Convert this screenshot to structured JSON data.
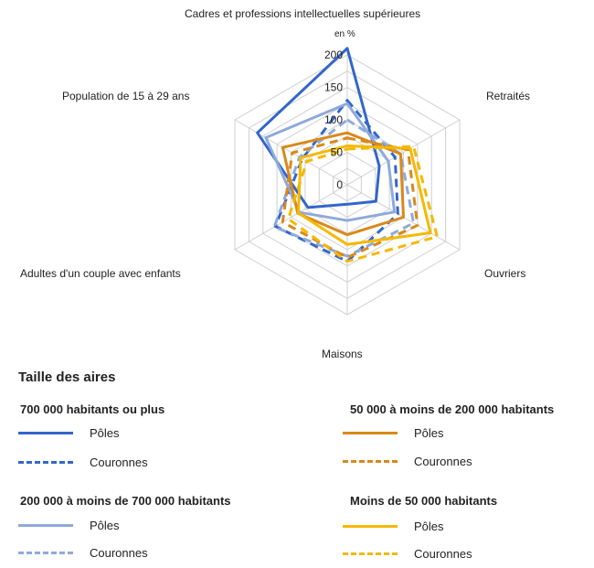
{
  "chart_data": {
    "type": "radar",
    "unit_label": "en %",
    "axes": [
      "Cadres et professions intellectuelles supérieures",
      "Retraités",
      "Ouvriers",
      "Maisons",
      "Adultes d'un couple avec enfants",
      "Population de 15 à 29 ans"
    ],
    "rlim": [
      0,
      200
    ],
    "ticks": [
      0,
      50,
      100,
      150,
      200
    ],
    "series": [
      {
        "name": "700 000 habitants ou plus — Pôles",
        "group": "700 000 habitants ou plus",
        "label": "Pôles",
        "color": "#3366cc",
        "dash": false,
        "values": [
          210,
          57,
          51,
          30,
          70,
          160
        ]
      },
      {
        "name": "700 000 habitants ou plus — Couronnes",
        "group": "700 000 habitants ou plus",
        "label": "Couronnes",
        "color": "#3366cc",
        "dash": true,
        "values": [
          130,
          85,
          90,
          118,
          128,
          80
        ]
      },
      {
        "name": "200 000 à moins de 700 000 habitants — Pôles",
        "group": "200 000 à moins de 700 000 habitants",
        "label": "Pôles",
        "color": "#8eaadb",
        "dash": false,
        "values": [
          125,
          73,
          84,
          55,
          85,
          145
        ]
      },
      {
        "name": "200 000 à moins de 700 000 habitants — Couronnes",
        "group": "200 000 à moins de 700 000 habitants",
        "label": "Couronnes",
        "color": "#8eaadb",
        "dash": true,
        "values": [
          100,
          95,
          118,
          110,
          130,
          85
        ]
      },
      {
        "name": "50 000 à moins de 200 000 habitants — Pôles",
        "group": "50 000 à moins de 200 000 habitants",
        "label": "Pôles",
        "color": "#d9891a",
        "dash": false,
        "values": [
          80,
          95,
          100,
          77,
          88,
          115
        ]
      },
      {
        "name": "50 000 à moins de 200 000 habitants — Couronnes",
        "group": "50 000 à moins de 200 000 habitants",
        "label": "Couronnes",
        "color": "#d9891a",
        "dash": true,
        "values": [
          72,
          108,
          125,
          112,
          115,
          98
        ]
      },
      {
        "name": "Moins de 50 000 habitants — Pôles",
        "group": "Moins de 50 000 habitants",
        "label": "Pôles",
        "color": "#f5b800",
        "dash": false,
        "values": [
          60,
          112,
          148,
          92,
          87,
          83
        ]
      },
      {
        "name": "Moins de 50 000 habitants — Couronnes",
        "group": "Moins de 50 000 habitants",
        "label": "Couronnes",
        "color": "#f5b800",
        "dash": true,
        "values": [
          55,
          118,
          160,
          118,
          105,
          72
        ]
      }
    ]
  },
  "legend": {
    "title": "Taille des aires",
    "groups": [
      {
        "title": "700 000 habitants ou plus",
        "entries": [
          {
            "label": "Pôles",
            "color": "#3366cc",
            "dash": false
          },
          {
            "label": "Couronnes",
            "color": "#3366cc",
            "dash": true
          }
        ]
      },
      {
        "title": "50 000 à moins de 200 000 habitants",
        "entries": [
          {
            "label": "Pôles",
            "color": "#d9891a",
            "dash": false
          },
          {
            "label": "Couronnes",
            "color": "#d9891a",
            "dash": true
          }
        ]
      },
      {
        "title": "200 000 à moins de 700 000 habitants",
        "entries": [
          {
            "label": "Pôles",
            "color": "#8eaadb",
            "dash": false
          },
          {
            "label": "Couronnes",
            "color": "#8eaadb",
            "dash": true
          }
        ]
      },
      {
        "title": "Moins de 50 000 habitants",
        "entries": [
          {
            "label": "Pôles",
            "color": "#f5b800",
            "dash": false
          },
          {
            "label": "Couronnes",
            "color": "#f5b800",
            "dash": true
          }
        ]
      }
    ]
  }
}
